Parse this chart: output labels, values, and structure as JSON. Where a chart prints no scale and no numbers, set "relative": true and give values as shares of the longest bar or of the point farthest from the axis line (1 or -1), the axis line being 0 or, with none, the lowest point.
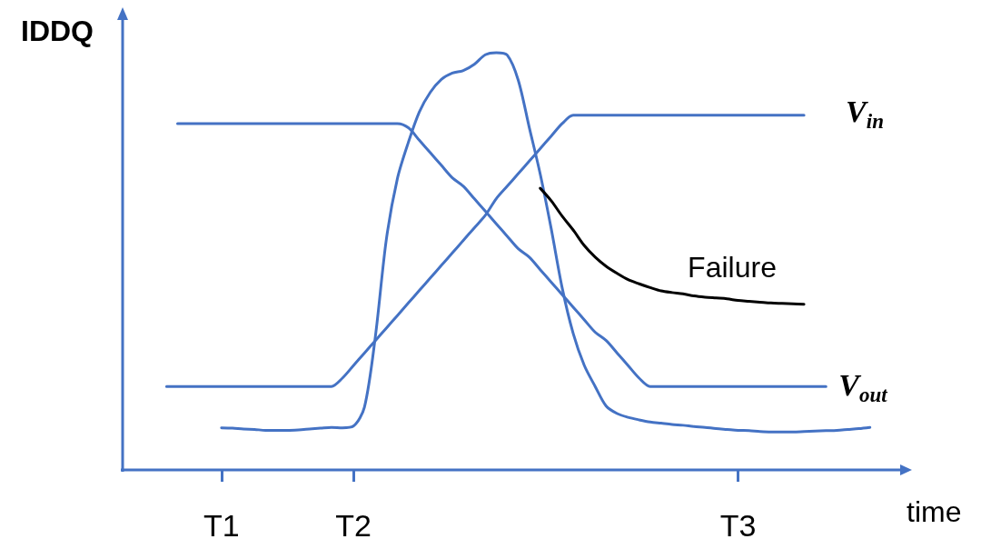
{
  "chart_data": {
    "type": "line",
    "relative": true,
    "ylabel": "IDDQ",
    "xlabel": "time",
    "categories": [
      null,
      null,
      null,
      null,
      null,
      null,
      null,
      null,
      null,
      "T1",
      null,
      null,
      null,
      null,
      null,
      null,
      null,
      null,
      null,
      null,
      null,
      "T2",
      null,
      null,
      null,
      null,
      null,
      null,
      null,
      null,
      null,
      null,
      null,
      null,
      null,
      null,
      null,
      null,
      null,
      null,
      null,
      null,
      null,
      null,
      null,
      null,
      null,
      null,
      null,
      null,
      null,
      null,
      null,
      null,
      null,
      null,
      "T3",
      null,
      null,
      null,
      null,
      null,
      null,
      null,
      null,
      null,
      null,
      null,
      null,
      null,
      null,
      null
    ],
    "series": [
      {
        "name": "V$_{in}$",
        "color": "#4472c4",
        "values": [
          null,
          null,
          null,
          null,
          0.2,
          0.2,
          0.2,
          0.2,
          0.2,
          0.2,
          0.2,
          0.2,
          0.2,
          0.2,
          0.2,
          0.2,
          0.2,
          0.2,
          0.2,
          0.2,
          0.22,
          0.25,
          0.28,
          0.31,
          0.34,
          0.37,
          0.4,
          0.43,
          0.46,
          0.49,
          0.52,
          0.55,
          0.58,
          0.61,
          0.65,
          0.68,
          0.71,
          0.74,
          0.77,
          0.8,
          0.83,
          0.85,
          0.85,
          0.85,
          0.85,
          0.85,
          0.85,
          0.85,
          0.85,
          0.85,
          0.85,
          0.85,
          0.85,
          0.85,
          0.85,
          0.85,
          0.85,
          0.85,
          0.85,
          0.85,
          0.85,
          0.85,
          0.85,
          null,
          null,
          null,
          null,
          null,
          null,
          null,
          null,
          null
        ]
      },
      {
        "name": "V$_{out}$",
        "color": "#4472c4",
        "values": [
          null,
          null,
          null,
          null,
          null,
          0.83,
          0.83,
          0.83,
          0.83,
          0.83,
          0.83,
          0.83,
          0.83,
          0.83,
          0.83,
          0.83,
          0.83,
          0.83,
          0.83,
          0.83,
          0.83,
          0.83,
          0.83,
          0.83,
          0.83,
          0.83,
          0.82,
          0.79,
          0.76,
          0.73,
          0.7,
          0.68,
          0.65,
          0.62,
          0.59,
          0.56,
          0.53,
          0.51,
          0.48,
          0.45,
          0.42,
          0.39,
          0.36,
          0.33,
          0.31,
          0.28,
          0.25,
          0.22,
          0.2,
          0.2,
          0.2,
          0.2,
          0.2,
          0.2,
          0.2,
          0.2,
          0.2,
          0.2,
          0.2,
          0.2,
          0.2,
          0.2,
          0.2,
          0.2,
          0.2,
          null,
          null,
          null,
          null,
          null,
          null,
          null
        ]
      },
      {
        "color": "#4472c4",
        "values": [
          null,
          null,
          null,
          null,
          null,
          null,
          null,
          null,
          null,
          0.101,
          0.1,
          0.098,
          0.097,
          0.095,
          0.095,
          0.095,
          0.096,
          0.098,
          0.1,
          0.102,
          0.101,
          0.105,
          0.15,
          0.32,
          0.553,
          0.698,
          0.785,
          0.858,
          0.905,
          0.936,
          0.951,
          0.957,
          0.972,
          0.995,
          1,
          0.994,
          0.934,
          0.821,
          0.709,
          0.578,
          0.436,
          0.327,
          0.251,
          0.2,
          0.153,
          0.135,
          0.126,
          0.12,
          0.115,
          0.112,
          0.109,
          0.107,
          0.104,
          0.102,
          0.099,
          0.097,
          0.095,
          0.094,
          0.092,
          0.091,
          0.091,
          0.091,
          0.092,
          0.093,
          0.094,
          0.095,
          0.097,
          0.099,
          0.102,
          null,
          null,
          null
        ]
      },
      {
        "name": "Failure",
        "color": "#000000",
        "values": [
          null,
          null,
          null,
          null,
          null,
          null,
          null,
          null,
          null,
          null,
          null,
          null,
          null,
          null,
          null,
          null,
          null,
          null,
          null,
          null,
          null,
          null,
          null,
          null,
          null,
          null,
          null,
          null,
          null,
          null,
          null,
          null,
          null,
          null,
          null,
          null,
          null,
          null,
          0.675,
          0.645,
          0.608,
          0.575,
          0.538,
          0.51,
          0.488,
          0.471,
          0.456,
          0.446,
          0.437,
          0.429,
          0.425,
          0.422,
          0.417,
          0.414,
          0.412,
          0.41,
          0.406,
          0.404,
          0.402,
          0.4,
          0.399,
          0.398,
          0.397,
          null,
          null,
          null,
          null,
          null,
          null,
          null,
          null,
          null
        ]
      }
    ]
  }
}
